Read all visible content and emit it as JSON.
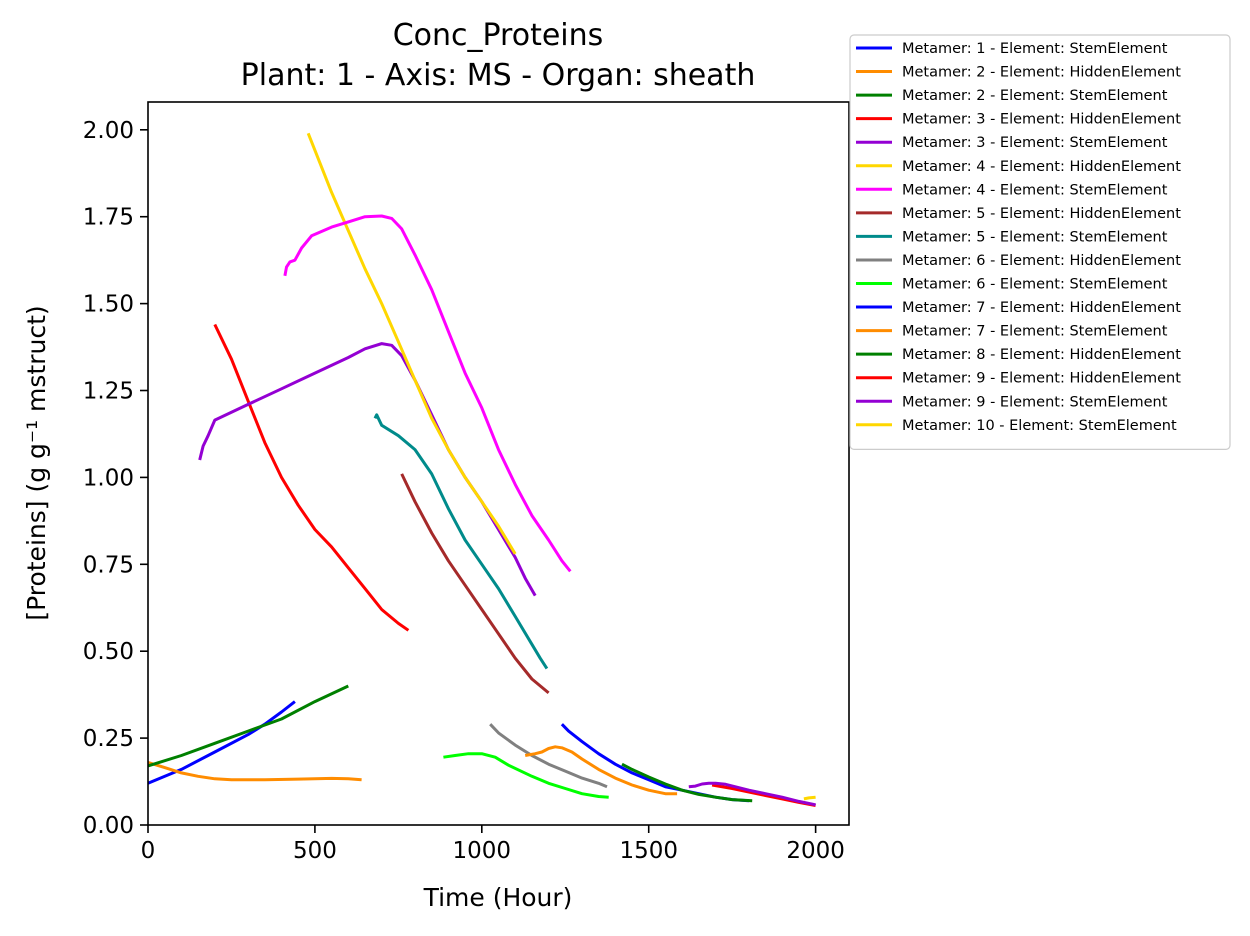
{
  "chart_data": {
    "type": "line",
    "title": "Conc_Proteins",
    "subtitle": "Plant: 1 - Axis: MS - Organ: sheath",
    "xlabel": "Time (Hour)",
    "ylabel": "[Proteins] (g g⁻¹ mstruct)",
    "xlim": [
      0,
      2100
    ],
    "ylim": [
      0,
      2.08
    ],
    "x_ticks": [
      "0",
      "500",
      "1000",
      "1500",
      "2000"
    ],
    "x_tick_values": [
      0,
      500,
      1000,
      1500,
      2000
    ],
    "y_ticks": [
      "0.00",
      "0.25",
      "0.50",
      "0.75",
      "1.00",
      "1.25",
      "1.50",
      "1.75",
      "2.00"
    ],
    "y_tick_values": [
      0,
      0.25,
      0.5,
      0.75,
      1.0,
      1.25,
      1.5,
      1.75,
      2.0
    ],
    "grid": false,
    "legend_position": "outside-top-right",
    "series": [
      {
        "name": "Metamer: 1 - Element: StemElement",
        "color": "#0000ff",
        "points": [
          [
            0,
            0.12
          ],
          [
            100,
            0.16
          ],
          [
            200,
            0.21
          ],
          [
            300,
            0.26
          ],
          [
            350,
            0.29
          ],
          [
            400,
            0.325
          ],
          [
            440,
            0.355
          ]
        ]
      },
      {
        "name": "Metamer: 2 - Element: HiddenElement",
        "color": "#ff8c00",
        "points": [
          [
            0,
            0.18
          ],
          [
            50,
            0.165
          ],
          [
            100,
            0.15
          ],
          [
            150,
            0.14
          ],
          [
            200,
            0.133
          ],
          [
            250,
            0.13
          ],
          [
            350,
            0.13
          ],
          [
            450,
            0.132
          ],
          [
            550,
            0.134
          ],
          [
            600,
            0.133
          ],
          [
            640,
            0.13
          ]
        ]
      },
      {
        "name": "Metamer: 2 - Element: StemElement",
        "color": "#008000",
        "points": [
          [
            0,
            0.17
          ],
          [
            100,
            0.2
          ],
          [
            200,
            0.235
          ],
          [
            300,
            0.27
          ],
          [
            400,
            0.305
          ],
          [
            500,
            0.355
          ],
          [
            600,
            0.4
          ]
        ]
      },
      {
        "name": "Metamer: 3 - Element: HiddenElement",
        "color": "#ff0000",
        "points": [
          [
            200,
            1.44
          ],
          [
            250,
            1.34
          ],
          [
            300,
            1.22
          ],
          [
            350,
            1.1
          ],
          [
            400,
            1.0
          ],
          [
            450,
            0.92
          ],
          [
            500,
            0.85
          ],
          [
            550,
            0.8
          ],
          [
            600,
            0.74
          ],
          [
            650,
            0.68
          ],
          [
            700,
            0.62
          ],
          [
            750,
            0.58
          ],
          [
            780,
            0.56
          ]
        ]
      },
      {
        "name": "Metamer: 3 - Element: StemElement",
        "color": "#9400d3",
        "points": [
          [
            155,
            1.05
          ],
          [
            165,
            1.09
          ],
          [
            180,
            1.12
          ],
          [
            200,
            1.165
          ],
          [
            300,
            1.21
          ],
          [
            400,
            1.255
          ],
          [
            500,
            1.3
          ],
          [
            600,
            1.345
          ],
          [
            650,
            1.37
          ],
          [
            700,
            1.385
          ],
          [
            730,
            1.38
          ],
          [
            760,
            1.35
          ],
          [
            800,
            1.28
          ],
          [
            850,
            1.18
          ],
          [
            900,
            1.08
          ],
          [
            950,
            1.0
          ],
          [
            1000,
            0.93
          ],
          [
            1050,
            0.85
          ],
          [
            1100,
            0.77
          ],
          [
            1130,
            0.71
          ],
          [
            1160,
            0.66
          ]
        ]
      },
      {
        "name": "Metamer: 4 - Element: HiddenElement",
        "color": "#ffd700",
        "points": [
          [
            480,
            1.99
          ],
          [
            550,
            1.82
          ],
          [
            600,
            1.71
          ],
          [
            650,
            1.6
          ],
          [
            700,
            1.5
          ],
          [
            750,
            1.39
          ],
          [
            800,
            1.28
          ],
          [
            850,
            1.17
          ],
          [
            900,
            1.08
          ],
          [
            950,
            1.0
          ],
          [
            1000,
            0.93
          ],
          [
            1050,
            0.86
          ],
          [
            1100,
            0.78
          ]
        ]
      },
      {
        "name": "Metamer: 4 - Element: StemElement",
        "color": "#ff00ff",
        "points": [
          [
            410,
            1.58
          ],
          [
            415,
            1.605
          ],
          [
            425,
            1.62
          ],
          [
            440,
            1.625
          ],
          [
            460,
            1.66
          ],
          [
            490,
            1.695
          ],
          [
            550,
            1.72
          ],
          [
            600,
            1.735
          ],
          [
            650,
            1.75
          ],
          [
            700,
            1.752
          ],
          [
            730,
            1.745
          ],
          [
            760,
            1.715
          ],
          [
            800,
            1.64
          ],
          [
            850,
            1.54
          ],
          [
            900,
            1.42
          ],
          [
            950,
            1.3
          ],
          [
            1000,
            1.2
          ],
          [
            1050,
            1.08
          ],
          [
            1100,
            0.98
          ],
          [
            1150,
            0.89
          ],
          [
            1200,
            0.82
          ],
          [
            1240,
            0.76
          ],
          [
            1265,
            0.73
          ]
        ]
      },
      {
        "name": "Metamer: 5 - Element: HiddenElement",
        "color": "#a52a2a",
        "points": [
          [
            760,
            1.01
          ],
          [
            800,
            0.93
          ],
          [
            850,
            0.84
          ],
          [
            900,
            0.76
          ],
          [
            950,
            0.69
          ],
          [
            1000,
            0.62
          ],
          [
            1050,
            0.55
          ],
          [
            1100,
            0.48
          ],
          [
            1150,
            0.42
          ],
          [
            1200,
            0.38
          ]
        ]
      },
      {
        "name": "Metamer: 5 - Element: StemElement",
        "color": "#008b8b",
        "points": [
          [
            680,
            1.17
          ],
          [
            685,
            1.18
          ],
          [
            700,
            1.15
          ],
          [
            750,
            1.12
          ],
          [
            800,
            1.08
          ],
          [
            850,
            1.01
          ],
          [
            900,
            0.91
          ],
          [
            950,
            0.82
          ],
          [
            1000,
            0.75
          ],
          [
            1050,
            0.68
          ],
          [
            1100,
            0.6
          ],
          [
            1150,
            0.52
          ],
          [
            1175,
            0.48
          ],
          [
            1195,
            0.45
          ]
        ]
      },
      {
        "name": "Metamer: 6 - Element: HiddenElement",
        "color": "#808080",
        "points": [
          [
            1025,
            0.29
          ],
          [
            1050,
            0.265
          ],
          [
            1100,
            0.23
          ],
          [
            1150,
            0.2
          ],
          [
            1200,
            0.175
          ],
          [
            1250,
            0.155
          ],
          [
            1300,
            0.135
          ],
          [
            1350,
            0.12
          ],
          [
            1375,
            0.11
          ]
        ]
      },
      {
        "name": "Metamer: 6 - Element: StemElement",
        "color": "#00ff00",
        "points": [
          [
            885,
            0.195
          ],
          [
            920,
            0.2
          ],
          [
            960,
            0.205
          ],
          [
            1000,
            0.205
          ],
          [
            1040,
            0.195
          ],
          [
            1080,
            0.172
          ],
          [
            1150,
            0.14
          ],
          [
            1200,
            0.12
          ],
          [
            1250,
            0.105
          ],
          [
            1300,
            0.09
          ],
          [
            1350,
            0.082
          ],
          [
            1380,
            0.08
          ]
        ]
      },
      {
        "name": "Metamer: 7 - Element: HiddenElement",
        "color": "#0000ff",
        "points": [
          [
            1240,
            0.29
          ],
          [
            1260,
            0.27
          ],
          [
            1300,
            0.24
          ],
          [
            1350,
            0.205
          ],
          [
            1400,
            0.175
          ],
          [
            1450,
            0.15
          ],
          [
            1500,
            0.13
          ],
          [
            1550,
            0.11
          ],
          [
            1600,
            0.1
          ],
          [
            1650,
            0.09
          ],
          [
            1700,
            0.08
          ],
          [
            1750,
            0.073
          ],
          [
            1800,
            0.07
          ]
        ]
      },
      {
        "name": "Metamer: 7 - Element: StemElement",
        "color": "#ff8c00",
        "points": [
          [
            1130,
            0.2
          ],
          [
            1160,
            0.205
          ],
          [
            1180,
            0.21
          ],
          [
            1200,
            0.22
          ],
          [
            1220,
            0.225
          ],
          [
            1240,
            0.222
          ],
          [
            1270,
            0.21
          ],
          [
            1300,
            0.19
          ],
          [
            1350,
            0.16
          ],
          [
            1400,
            0.135
          ],
          [
            1450,
            0.115
          ],
          [
            1500,
            0.1
          ],
          [
            1550,
            0.09
          ],
          [
            1585,
            0.09
          ]
        ]
      },
      {
        "name": "Metamer: 8 - Element: HiddenElement",
        "color": "#008000",
        "points": [
          [
            1420,
            0.175
          ],
          [
            1450,
            0.16
          ],
          [
            1500,
            0.138
          ],
          [
            1550,
            0.118
          ],
          [
            1600,
            0.1
          ],
          [
            1650,
            0.088
          ],
          [
            1700,
            0.08
          ],
          [
            1750,
            0.073
          ],
          [
            1810,
            0.07
          ]
        ]
      },
      {
        "name": "Metamer: 9 - Element: HiddenElement",
        "color": "#ff0000",
        "points": [
          [
            1690,
            0.115
          ],
          [
            1750,
            0.105
          ],
          [
            1800,
            0.095
          ],
          [
            1850,
            0.085
          ],
          [
            1900,
            0.075
          ],
          [
            1950,
            0.065
          ],
          [
            2000,
            0.056
          ]
        ]
      },
      {
        "name": "Metamer: 9 - Element: StemElement",
        "color": "#9400d3",
        "points": [
          [
            1620,
            0.11
          ],
          [
            1640,
            0.112
          ],
          [
            1660,
            0.118
          ],
          [
            1680,
            0.12
          ],
          [
            1700,
            0.12
          ],
          [
            1730,
            0.117
          ],
          [
            1760,
            0.11
          ],
          [
            1800,
            0.1
          ],
          [
            1850,
            0.09
          ],
          [
            1900,
            0.08
          ],
          [
            1950,
            0.068
          ],
          [
            2000,
            0.058
          ]
        ]
      },
      {
        "name": "Metamer: 10 - Element: StemElement",
        "color": "#ffd700",
        "points": [
          [
            1965,
            0.075
          ],
          [
            1980,
            0.078
          ],
          [
            2000,
            0.08
          ]
        ]
      }
    ]
  }
}
